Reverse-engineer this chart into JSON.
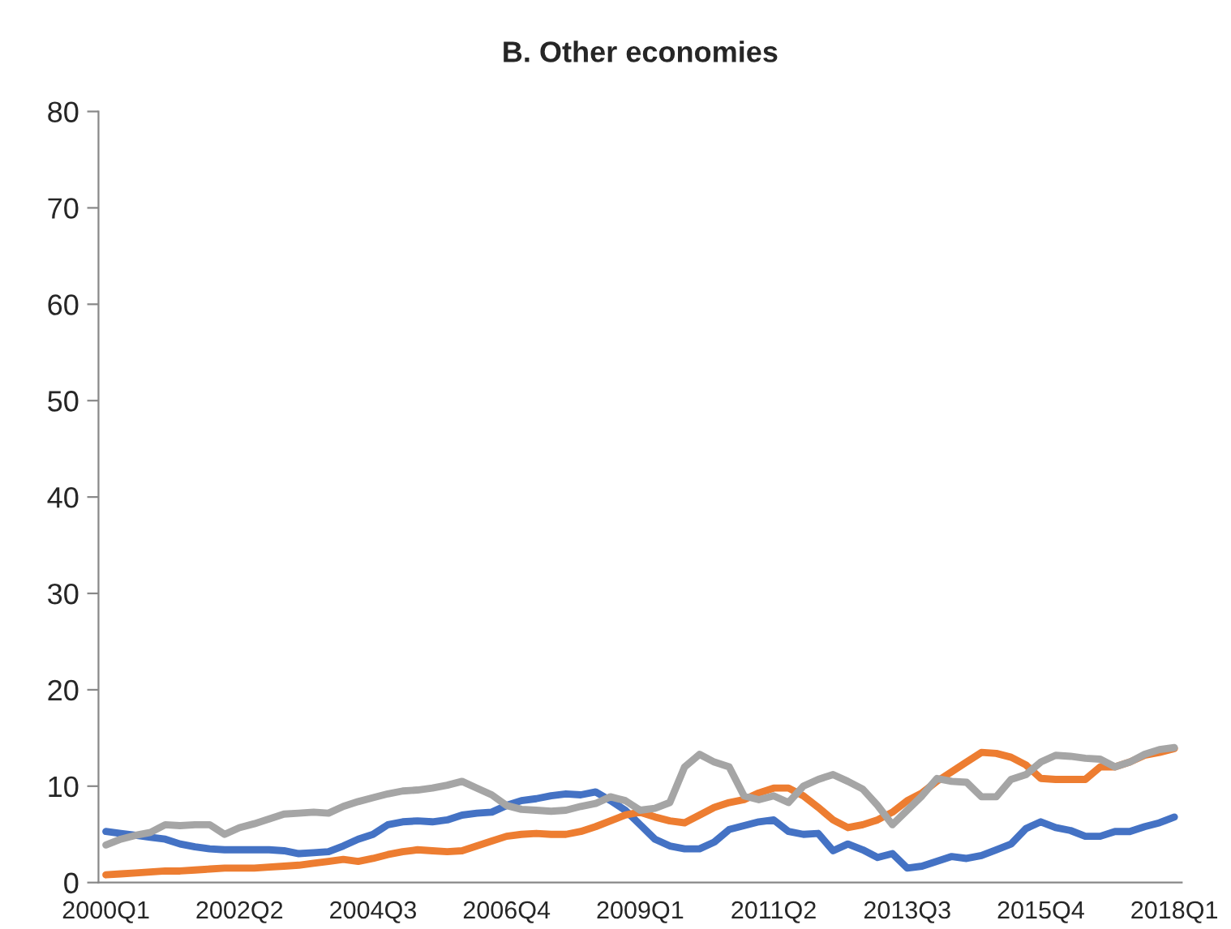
{
  "chart_data": {
    "type": "line",
    "title": "B. Other economies",
    "categories": [
      "2000Q1",
      null,
      null,
      null,
      null,
      null,
      null,
      null,
      null,
      "2002Q2",
      null,
      null,
      null,
      null,
      null,
      null,
      null,
      null,
      "2004Q3",
      null,
      null,
      null,
      null,
      null,
      null,
      null,
      null,
      "2006Q4",
      null,
      null,
      null,
      null,
      null,
      null,
      null,
      null,
      "2009Q1",
      null,
      null,
      null,
      null,
      null,
      null,
      null,
      null,
      "2011Q2",
      null,
      null,
      null,
      null,
      null,
      null,
      null,
      null,
      "2013Q3",
      null,
      null,
      null,
      null,
      null,
      null,
      null,
      null,
      "2015Q4",
      null,
      null,
      null,
      null,
      null,
      null,
      null,
      null,
      "2018Q1"
    ],
    "series": [
      {
        "color": "#4472c4",
        "values": [
          5.3,
          5.1,
          4.9,
          4.7,
          4.5,
          4.0,
          3.7,
          3.5,
          3.4,
          3.4,
          3.4,
          3.4,
          3.3,
          3.0,
          3.1,
          3.2,
          3.8,
          4.5,
          5.0,
          6.0,
          6.3,
          6.4,
          6.3,
          6.5,
          7.0,
          7.2,
          7.3,
          8.0,
          8.5,
          8.7,
          9.0,
          9.2,
          9.1,
          9.4,
          8.5,
          7.5,
          6.0,
          4.5,
          3.8,
          3.5,
          3.5,
          4.2,
          5.5,
          5.9,
          6.3,
          6.5,
          5.3,
          5.0,
          5.1,
          3.3,
          4.0,
          3.4,
          2.6,
          3.0,
          1.5,
          1.7,
          2.2,
          2.7,
          2.5,
          2.8,
          3.4,
          4.0,
          5.6,
          6.3,
          5.7,
          5.4,
          4.8,
          4.8,
          5.3,
          5.3,
          5.8,
          6.2,
          6.8
        ]
      },
      {
        "color": "#ed7d31",
        "values": [
          0.8,
          0.9,
          1.0,
          1.1,
          1.2,
          1.2,
          1.3,
          1.4,
          1.5,
          1.5,
          1.5,
          1.6,
          1.7,
          1.8,
          2.0,
          2.2,
          2.4,
          2.2,
          2.5,
          2.9,
          3.2,
          3.4,
          3.3,
          3.2,
          3.3,
          3.8,
          4.3,
          4.8,
          5.0,
          5.1,
          5.0,
          5.0,
          5.3,
          5.8,
          6.4,
          7.0,
          7.3,
          6.8,
          6.4,
          6.2,
          7.0,
          7.8,
          8.3,
          8.6,
          9.3,
          9.8,
          9.8,
          9.0,
          7.8,
          6.5,
          5.7,
          6.0,
          6.5,
          7.3,
          8.5,
          9.3,
          10.5,
          11.5,
          12.5,
          13.5,
          13.4,
          13.0,
          12.2,
          10.8,
          10.7,
          10.7,
          10.7,
          12.0,
          12.0,
          12.5,
          13.2,
          13.5,
          13.9
        ]
      },
      {
        "color": "#a5a5a5",
        "values": [
          3.9,
          4.5,
          4.9,
          5.2,
          6.0,
          5.9,
          6.0,
          6.0,
          5.0,
          5.7,
          6.1,
          6.6,
          7.1,
          7.2,
          7.3,
          7.2,
          7.9,
          8.4,
          8.8,
          9.2,
          9.5,
          9.6,
          9.8,
          10.1,
          10.5,
          9.8,
          9.1,
          8.0,
          7.6,
          7.5,
          7.4,
          7.5,
          7.9,
          8.2,
          8.9,
          8.5,
          7.5,
          7.7,
          8.3,
          12.0,
          13.3,
          12.5,
          12.0,
          9.0,
          8.6,
          9.0,
          8.3,
          10.0,
          10.7,
          11.2,
          10.5,
          9.7,
          8.0,
          6.0,
          7.5,
          9.0,
          10.8,
          10.5,
          10.4,
          8.9,
          8.9,
          10.7,
          11.2,
          12.5,
          13.2,
          13.1,
          12.9,
          12.8,
          12.0,
          12.5,
          13.3,
          13.8,
          14.0
        ]
      }
    ],
    "ylim": [
      0,
      80
    ],
    "yticks": [
      0,
      10,
      20,
      30,
      40,
      50,
      60,
      70,
      80
    ],
    "grid": false
  }
}
